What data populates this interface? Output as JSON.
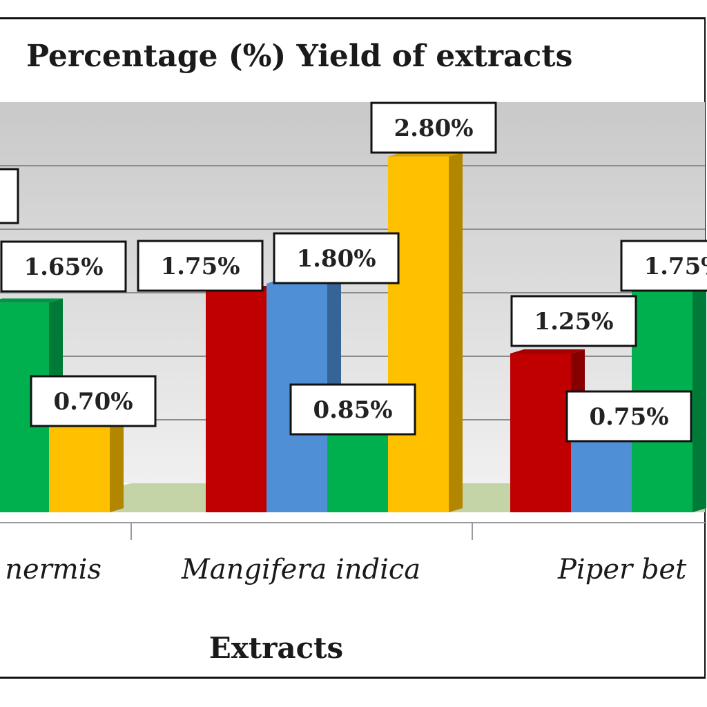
{
  "chart_data": {
    "type": "bar",
    "title": "Percentage (%) Yield of  extracts",
    "xlabel": "Extracts",
    "ylabel": "",
    "categories": [
      "Lawsonia inermis",
      "Mangifera  indica",
      "Piper betle"
    ],
    "visible_category_labels": [
      "nermis",
      "Mangifera  indica",
      "Piper bet"
    ],
    "series": [
      {
        "color": "#c00000",
        "values": [
          null,
          1.75,
          1.25
        ],
        "labels": [
          "",
          "1.75%",
          "1.25%"
        ]
      },
      {
        "color": "#4f8fd6",
        "values": [
          null,
          1.8,
          0.75
        ],
        "labels": [
          "",
          "1.80%",
          "0.75%"
        ]
      },
      {
        "color": "#00b04f",
        "values": [
          1.65,
          0.85,
          1.75
        ],
        "labels": [
          "1.65%",
          "0.85%",
          "1.75%"
        ]
      },
      {
        "color": "#ffc000",
        "values": [
          0.7,
          2.8,
          null
        ],
        "labels": [
          "0.70%",
          "2.80%",
          ""
        ]
      }
    ],
    "ylim": [
      0,
      3.2
    ],
    "grid": true,
    "legend": "none"
  }
}
